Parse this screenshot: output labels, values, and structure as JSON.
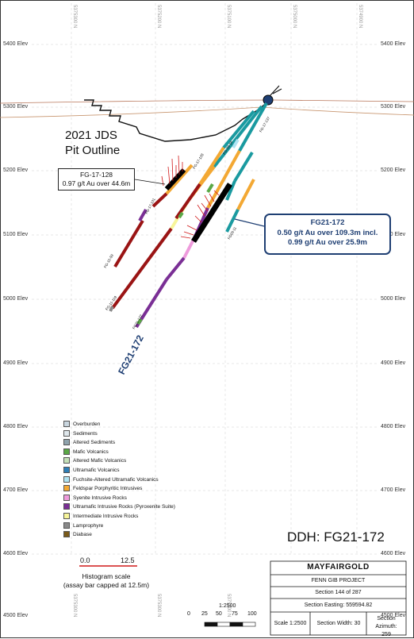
{
  "elevations": [
    "5400 Elev",
    "5300 Elev",
    "5200 Elev",
    "5100 Elev",
    "5000 Elev",
    "4900 Elev",
    "4800 Elev",
    "4700 Elev",
    "4600 Elev",
    "4500 Elev"
  ],
  "northings_top": [
    "5375300 N",
    "5375200 N",
    "5375100 N",
    "5375000 N",
    "5374900 N"
  ],
  "northings_bottom": [
    "5375300 N",
    "5375300 N",
    "5375300 N"
  ],
  "pit_label_line1": "2021 JDS",
  "pit_label_line2": "Pit Outline",
  "callout_fg17128": {
    "hole": "FG-17-128",
    "result": "0.97 g/t Au over 44.6m"
  },
  "callout_fg21172": {
    "hole": "FG21-172",
    "result1": "0.50 g/t Au over 109.3m incl.",
    "result2": "0.99 g/t Au over 25.9m"
  },
  "hole_label": "FG21-172",
  "hole_tags": [
    "FG-17-128",
    "FG-17-131",
    "FG-10-59",
    "FG-11-119",
    "FG-09-18",
    "FG21-172",
    "FG-17-137",
    "FG09-11"
  ],
  "legend": [
    {
      "label": "Overburden",
      "color": "#c9d6df"
    },
    {
      "label": "Sediments",
      "color": "#dfe7ec"
    },
    {
      "label": "Altered Sediments",
      "color": "#8fa3ad"
    },
    {
      "label": "Mafic Volcanics",
      "color": "#5aa846"
    },
    {
      "label": "Altered Mafic Volcanics",
      "color": "#c4e0b8"
    },
    {
      "label": "Ultramafic Volcanics",
      "color": "#2e7fb8"
    },
    {
      "label": "Fuchsite-Altered Ultramafic Volcanics",
      "color": "#aee3f2"
    },
    {
      "label": "Feldspar Porphyritic Intrusives",
      "color": "#f3a833"
    },
    {
      "label": "Syenite Intrusive Rocks",
      "color": "#ee9bdc"
    },
    {
      "label": "Ultramafic  Intrusive Rocks (Pyroxenite Suite)",
      "color": "#7a2f95"
    },
    {
      "label": "Intermediate  Intrusive Rocks",
      "color": "#f7f59a"
    },
    {
      "label": "Lamprophyre",
      "color": "#8a8a8a"
    },
    {
      "label": "Diabase",
      "color": "#7a5a1a"
    }
  ],
  "ddh": "DDH: FG21-172",
  "histogram": {
    "min": "0.0",
    "max": "12.5",
    "title1": "Histogram scale",
    "title2": "(assay bar capped at 12.5m)"
  },
  "title_block": {
    "company": "MAYFAIRGOLD",
    "project": "FENN GIB PROJECT",
    "section": "Section 144 of 287",
    "easting": "Section Easting: 559594.82",
    "scale": "Scale 1:2500",
    "width": "Section Width: 30",
    "azimuth_label": "Section Azimuth:",
    "azimuth_value": "259"
  },
  "scale_bar": {
    "ratio": "1:2500",
    "ticks": [
      "0",
      "25",
      "50",
      "75",
      "100"
    ]
  }
}
